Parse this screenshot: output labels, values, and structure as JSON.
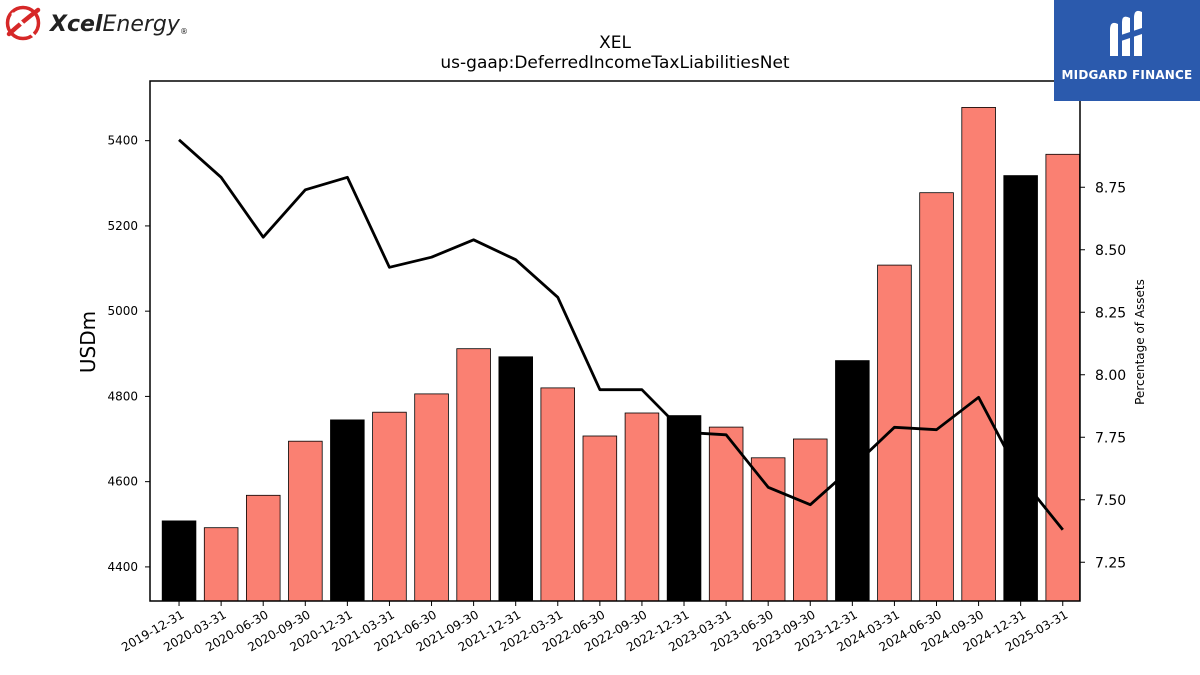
{
  "brand": {
    "left_logo": {
      "name": "Xcel Energy",
      "wordmark_bold": "Xcel",
      "wordmark_rest": "Energy",
      "registered": "®",
      "icon": "xcel-swoosh-icon",
      "accent": "#d62828"
    },
    "right_logo": {
      "name": "MIDGARD FINANCE",
      "icon": "midgard-m-icon",
      "background": "#2b5aad"
    }
  },
  "chart_data": {
    "type": "bar",
    "title": "XEL",
    "subtitle": "us-gaap:DeferredIncomeTaxLiabilitiesNet",
    "ylabel": "USDm",
    "y2label": "Percentage of Assets",
    "ylim": [
      4320,
      5540
    ],
    "y_ticks": [
      4400,
      4600,
      4800,
      5000,
      5200,
      5400
    ],
    "y2lim": [
      7.095,
      9.175
    ],
    "y2_ticks": [
      "7.25",
      "7.50",
      "7.75",
      "8.00",
      "8.25",
      "8.50",
      "8.75"
    ],
    "y2_tick_values": [
      7.25,
      7.5,
      7.75,
      8.0,
      8.25,
      8.5,
      8.75
    ],
    "categories": [
      "2019-12-31",
      "2020-03-31",
      "2020-06-30",
      "2020-09-30",
      "2020-12-31",
      "2021-03-31",
      "2021-06-30",
      "2021-09-30",
      "2021-12-31",
      "2022-03-31",
      "2022-06-30",
      "2022-09-30",
      "2022-12-31",
      "2023-03-31",
      "2023-06-30",
      "2023-09-30",
      "2023-12-31",
      "2024-03-31",
      "2024-06-30",
      "2024-09-30",
      "2024-12-31",
      "2025-03-31"
    ],
    "series": [
      {
        "type": "bar",
        "axis": "left",
        "values": [
          4508,
          4492,
          4568,
          4695,
          4745,
          4763,
          4806,
          4912,
          4893,
          4820,
          4707,
          4761,
          4755,
          4728,
          4656,
          4700,
          4884,
          5108,
          5278,
          5478,
          5318,
          5368
        ]
      },
      {
        "type": "line",
        "axis": "right",
        "values": [
          8.94,
          8.79,
          8.55,
          8.74,
          8.79,
          8.43,
          8.47,
          8.54,
          8.46,
          8.31,
          7.94,
          7.94,
          7.77,
          7.76,
          7.55,
          7.48,
          7.63,
          7.79,
          7.78,
          7.91,
          7.59,
          7.38
        ]
      }
    ],
    "bar_colors": [
      "#000000",
      "#fa8072",
      "#fa8072",
      "#fa8072",
      "#000000",
      "#fa8072",
      "#fa8072",
      "#fa8072",
      "#000000",
      "#fa8072",
      "#fa8072",
      "#fa8072",
      "#000000",
      "#fa8072",
      "#fa8072",
      "#fa8072",
      "#000000",
      "#fa8072",
      "#fa8072",
      "#fa8072",
      "#000000",
      "#fa8072"
    ],
    "line_color": "#000000",
    "grid": false,
    "legend": "none"
  }
}
